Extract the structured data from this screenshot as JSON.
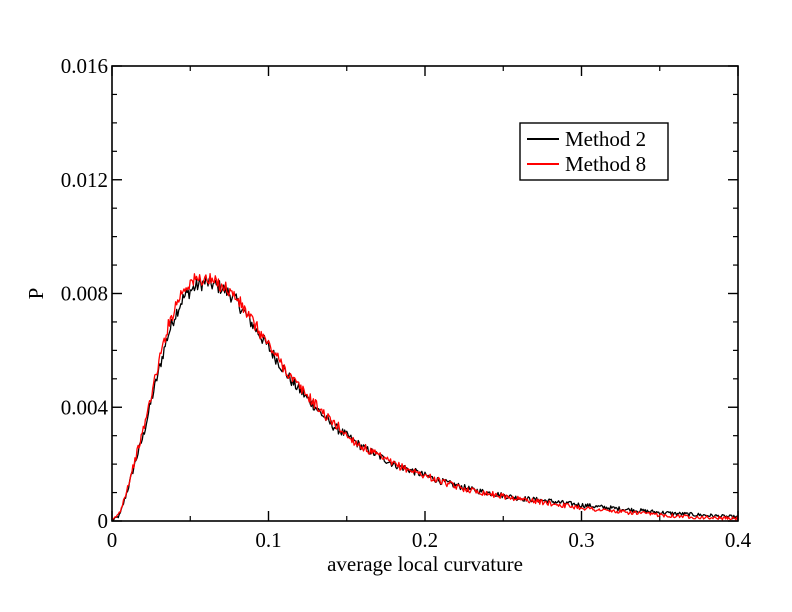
{
  "chart_data": {
    "type": "line",
    "title": "",
    "xlabel": "average local curvature",
    "ylabel": "P",
    "xlim": [
      0,
      0.4
    ],
    "ylim": [
      0,
      0.016
    ],
    "x_ticks": [
      0,
      0.1,
      0.2,
      0.3,
      0.4
    ],
    "x_tick_labels": [
      "0",
      "0.1",
      "0.2",
      "0.3",
      "0.4"
    ],
    "y_ticks": [
      0,
      0.004,
      0.008,
      0.012,
      0.016
    ],
    "y_tick_labels": [
      "0",
      "0.004",
      "0.008",
      "0.012",
      "0.016"
    ],
    "grid": false,
    "legend_position": "top-right",
    "series": [
      {
        "name": "Method 2",
        "color": "#000000",
        "x": [
          0,
          0.005,
          0.01,
          0.015,
          0.02,
          0.025,
          0.03,
          0.035,
          0.04,
          0.045,
          0.05,
          0.055,
          0.06,
          0.065,
          0.07,
          0.075,
          0.08,
          0.085,
          0.09,
          0.095,
          0.1,
          0.105,
          0.11,
          0.115,
          0.12,
          0.125,
          0.13,
          0.135,
          0.14,
          0.145,
          0.15,
          0.16,
          0.17,
          0.18,
          0.19,
          0.2,
          0.21,
          0.22,
          0.23,
          0.24,
          0.25,
          0.26,
          0.27,
          0.28,
          0.29,
          0.3,
          0.31,
          0.32,
          0.33,
          0.34,
          0.35,
          0.36,
          0.37,
          0.38,
          0.39,
          0.4
        ],
        "y": [
          0,
          0.0002,
          0.0011,
          0.0021,
          0.003,
          0.0042,
          0.0053,
          0.0064,
          0.0072,
          0.0078,
          0.0081,
          0.0083,
          0.0084,
          0.0083,
          0.0082,
          0.008,
          0.0077,
          0.0073,
          0.0069,
          0.0065,
          0.0061,
          0.0057,
          0.0053,
          0.0049,
          0.0046,
          0.0043,
          0.004,
          0.0037,
          0.0034,
          0.0032,
          0.003,
          0.0026,
          0.0023,
          0.002,
          0.0018,
          0.0016,
          0.0014,
          0.00125,
          0.0011,
          0.001,
          0.0009,
          0.0008,
          0.00075,
          0.0007,
          0.00062,
          0.00056,
          0.0005,
          0.00045,
          0.0004,
          0.00035,
          0.0003,
          0.00026,
          0.00023,
          0.0002,
          0.00016,
          0.00013
        ]
      },
      {
        "name": "Method 8",
        "color": "#ff0000",
        "x": [
          0,
          0.005,
          0.01,
          0.015,
          0.02,
          0.025,
          0.03,
          0.035,
          0.04,
          0.045,
          0.05,
          0.055,
          0.06,
          0.065,
          0.07,
          0.075,
          0.08,
          0.085,
          0.09,
          0.095,
          0.1,
          0.105,
          0.11,
          0.115,
          0.12,
          0.125,
          0.13,
          0.135,
          0.14,
          0.145,
          0.15,
          0.16,
          0.17,
          0.18,
          0.19,
          0.2,
          0.21,
          0.22,
          0.23,
          0.24,
          0.25,
          0.26,
          0.27,
          0.28,
          0.29,
          0.3,
          0.31,
          0.32,
          0.33,
          0.34,
          0.35,
          0.36,
          0.37,
          0.38,
          0.39,
          0.4
        ],
        "y": [
          0,
          0.0003,
          0.0012,
          0.0022,
          0.0032,
          0.0044,
          0.0056,
          0.0067,
          0.0075,
          0.0081,
          0.0084,
          0.0085,
          0.0085,
          0.0084,
          0.0083,
          0.0081,
          0.0078,
          0.0074,
          0.007,
          0.0066,
          0.0062,
          0.0058,
          0.0054,
          0.005,
          0.0047,
          0.0044,
          0.0041,
          0.0038,
          0.0035,
          0.0033,
          0.003,
          0.0026,
          0.0023,
          0.002,
          0.0018,
          0.0016,
          0.0014,
          0.0012,
          0.00108,
          0.00097,
          0.00087,
          0.00078,
          0.0007,
          0.00062,
          0.00054,
          0.00047,
          0.0004,
          0.00034,
          0.0003,
          0.00026,
          0.00022,
          0.00018,
          0.00015,
          0.00012,
          0.0001,
          8e-05
        ]
      }
    ]
  }
}
